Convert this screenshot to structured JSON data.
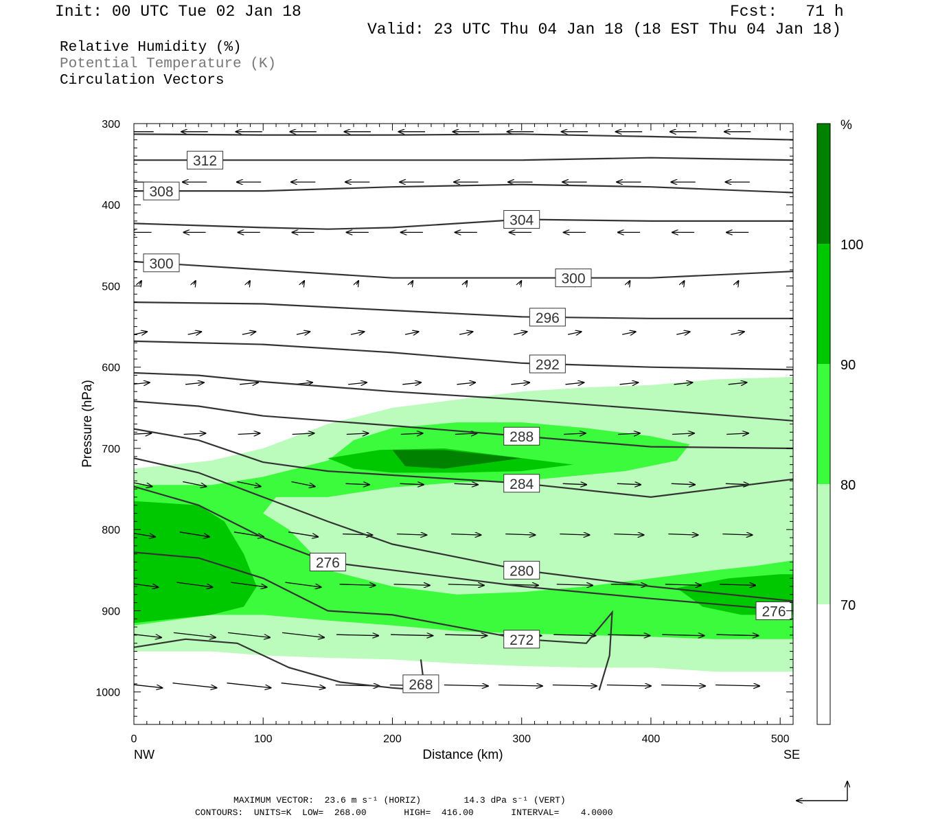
{
  "header": {
    "init": "Init: 00 UTC Tue 02 Jan 18",
    "fcst": "Fcst:   71 h",
    "valid": "Valid: 23 UTC Thu 04 Jan 18 (18 EST Thu 04 Jan 18)"
  },
  "legend": {
    "rh": "Relative Humidity (%)",
    "theta": "Potential Temperature (K)",
    "vectors": "Circulation Vectors"
  },
  "footer": {
    "max_vector": "MAXIMUM VECTOR:  23.6 m s⁻¹ (HORIZ)        14.3 dPa s⁻¹ (VERT)",
    "contours": "CONTOURS:  UNITS=K  LOW=  268.00       HIGH=  416.00       INTERVAL=    4.0000"
  },
  "colors": {
    "rh_70_80": "#bbfbbb",
    "rh_80_90": "#3cfa3c",
    "rh_90_100": "#00c800",
    "rh_100": "#008200",
    "contour": "#333333",
    "vector": "#000000"
  },
  "chart_data": {
    "type": "cross-section",
    "xlabel": "Distance (km)",
    "ylabel": "Pressure (hPa)",
    "xlim": [
      0,
      510
    ],
    "ylim": [
      1040,
      300
    ],
    "y_scale": "linear, inverted",
    "x_ticks": [
      "0",
      "100",
      "200",
      "300",
      "400",
      "500"
    ],
    "x_end_labels": [
      "NW",
      "SE"
    ],
    "y_ticks": [
      "300",
      "400",
      "500",
      "600",
      "700",
      "800",
      "900",
      "1000"
    ],
    "colorbar": {
      "unit": "%",
      "levels": [
        "70",
        "80",
        "90",
        "100"
      ],
      "colors": [
        "#ffffff",
        "#bbfbbb",
        "#3cfa3c",
        "#00c800",
        "#008200"
      ]
    },
    "theta_contours": [
      {
        "label": "312",
        "x": [
          0,
          100,
          200,
          300,
          400,
          510
        ],
        "y": [
          313,
          314,
          314,
          313,
          316,
          320
        ]
      },
      {
        "label": "312",
        "x": [
          0,
          100,
          200,
          300,
          400,
          510
        ],
        "y": [
          345,
          345,
          345,
          345,
          342,
          345
        ]
      },
      {
        "label": "308",
        "x": [
          0,
          100,
          200,
          300,
          400,
          510
        ],
        "y": [
          383,
          383,
          378,
          375,
          378,
          385
        ]
      },
      {
        "label": "304",
        "x": [
          0,
          100,
          150,
          200,
          300,
          400,
          510
        ],
        "y": [
          423,
          428,
          430,
          428,
          418,
          420,
          420
        ]
      },
      {
        "label": "300",
        "x": [
          0,
          100,
          200,
          300,
          400,
          510
        ],
        "y": [
          470,
          480,
          490,
          490,
          490,
          482
        ]
      },
      {
        "label": "296",
        "x": [
          0,
          100,
          200,
          300,
          400,
          510
        ],
        "y": [
          520,
          522,
          530,
          538,
          540,
          540
        ]
      },
      {
        "label": "292",
        "x": [
          0,
          100,
          200,
          300,
          400,
          510
        ],
        "y": [
          568,
          572,
          582,
          595,
          600,
          603
        ]
      },
      {
        "label": "288",
        "x": [
          0,
          50,
          100,
          200,
          300,
          400,
          510
        ],
        "y": [
          607,
          610,
          618,
          630,
          640,
          652,
          666
        ]
      },
      {
        "label": "288",
        "x": [
          0,
          50,
          100,
          200,
          300,
          400,
          510
        ],
        "y": [
          642,
          648,
          660,
          672,
          685,
          698,
          700
        ]
      },
      {
        "label": "284",
        "x": [
          0,
          50,
          100,
          150,
          200,
          300,
          400,
          510
        ],
        "y": [
          676,
          690,
          717,
          728,
          733,
          743,
          760,
          738
        ]
      },
      {
        "label": "280",
        "x": [
          0,
          50,
          100,
          150,
          200,
          300,
          400,
          510
        ],
        "y": [
          712,
          730,
          760,
          790,
          818,
          850,
          870,
          888
        ]
      },
      {
        "label": "276",
        "x": [
          0,
          50,
          100,
          150,
          200,
          300,
          400,
          510
        ],
        "y": [
          747,
          770,
          810,
          840,
          850,
          870,
          885,
          900
        ]
      },
      {
        "label": "272",
        "x": [
          0,
          50,
          100,
          150,
          200,
          250,
          300,
          350,
          370,
          368,
          360
        ],
        "y": [
          828,
          835,
          860,
          900,
          905,
          920,
          935,
          940,
          902,
          955,
          998
        ]
      },
      {
        "label": "268",
        "x": [
          0,
          40,
          80,
          120,
          160,
          200,
          225,
          222
        ],
        "y": [
          945,
          935,
          940,
          970,
          988,
          995,
          998,
          960
        ]
      }
    ],
    "rh_regions": [
      {
        "level": ">=70",
        "x_range": [
          0,
          510
        ],
        "p_range": [
          610,
          975
        ]
      },
      {
        "level": ">=80",
        "x_range": [
          0,
          510
        ],
        "p_range": [
          640,
          930
        ]
      },
      {
        "level": ">=90",
        "x_range": [
          0,
          510
        ],
        "p_range": [
          700,
          915
        ]
      },
      {
        "level": ">=100",
        "x_range": [
          190,
          310
        ],
        "p_range": [
          700,
          730
        ]
      }
    ],
    "max_vector": {
      "horiz": "23.6 m s-1",
      "vert": "14.3 dPa s-1"
    },
    "contour_info": {
      "units": "K",
      "low": 268,
      "high": 416,
      "interval": 4
    }
  }
}
